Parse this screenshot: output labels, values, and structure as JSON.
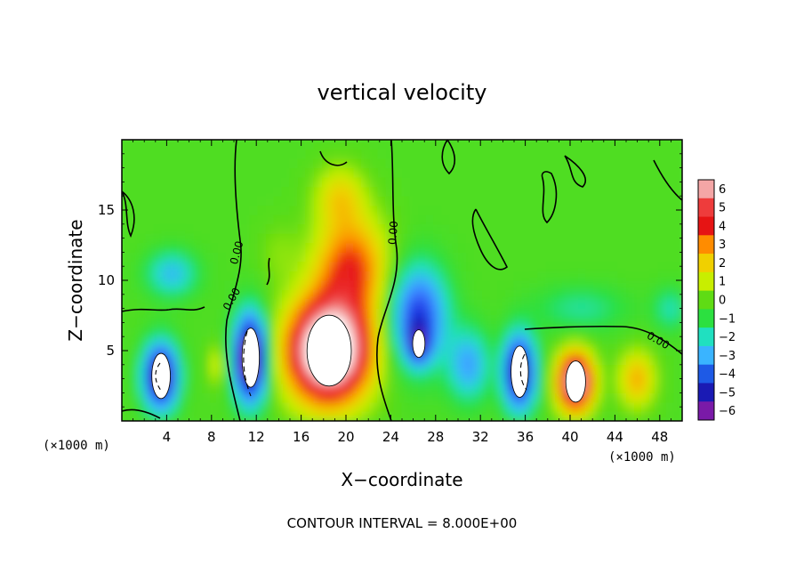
{
  "chart_data": {
    "type": "heatmap",
    "title": "vertical velocity",
    "xlabel": "X−coordinate",
    "ylabel": "Z−coordinate",
    "x_unit_left": "(×1000 m)",
    "x_unit_right": "(×1000 m)",
    "xlim": [
      0,
      50
    ],
    "ylim": [
      0,
      20
    ],
    "x_ticks": [
      4,
      8,
      12,
      16,
      20,
      24,
      28,
      32,
      36,
      40,
      44,
      48
    ],
    "y_ticks": [
      5,
      10,
      15
    ],
    "contour_labels": [
      "0.00",
      "0.00",
      "0.00",
      "0.00"
    ],
    "footer": "CONTOUR INTERVAL = 8.000E+00",
    "colorbar": {
      "levels": [
        "6",
        "5",
        "4",
        "3",
        "2",
        "1",
        "0",
        "−1",
        "−2",
        "−3",
        "−4",
        "−5",
        "−6"
      ],
      "colors": [
        "#f4a6a6",
        "#ee3c3c",
        "#e61414",
        "#ff8c00",
        "#f0d000",
        "#c8ee00",
        "#5fdc14",
        "#2ce040",
        "#20e0c0",
        "#3ab4ff",
        "#1e5ae6",
        "#1a1ab4",
        "#7a1aa8"
      ]
    },
    "features": [
      {
        "x": 3.5,
        "z": 3.2,
        "value": -7
      },
      {
        "x": 11.5,
        "z": 4.5,
        "value": -8
      },
      {
        "x": 18.5,
        "z": 5.0,
        "value": 9
      },
      {
        "x": 26.5,
        "z": 5.5,
        "value": -7
      },
      {
        "x": 35.5,
        "z": 3.5,
        "value": -7
      },
      {
        "x": 40.5,
        "z": 2.8,
        "value": 7
      },
      {
        "x": 21.0,
        "z": 14.0,
        "value": 3
      },
      {
        "x": 4.0,
        "z": 10.5,
        "value": -2.5
      },
      {
        "x": 46.0,
        "z": 3.0,
        "value": 3
      }
    ]
  }
}
